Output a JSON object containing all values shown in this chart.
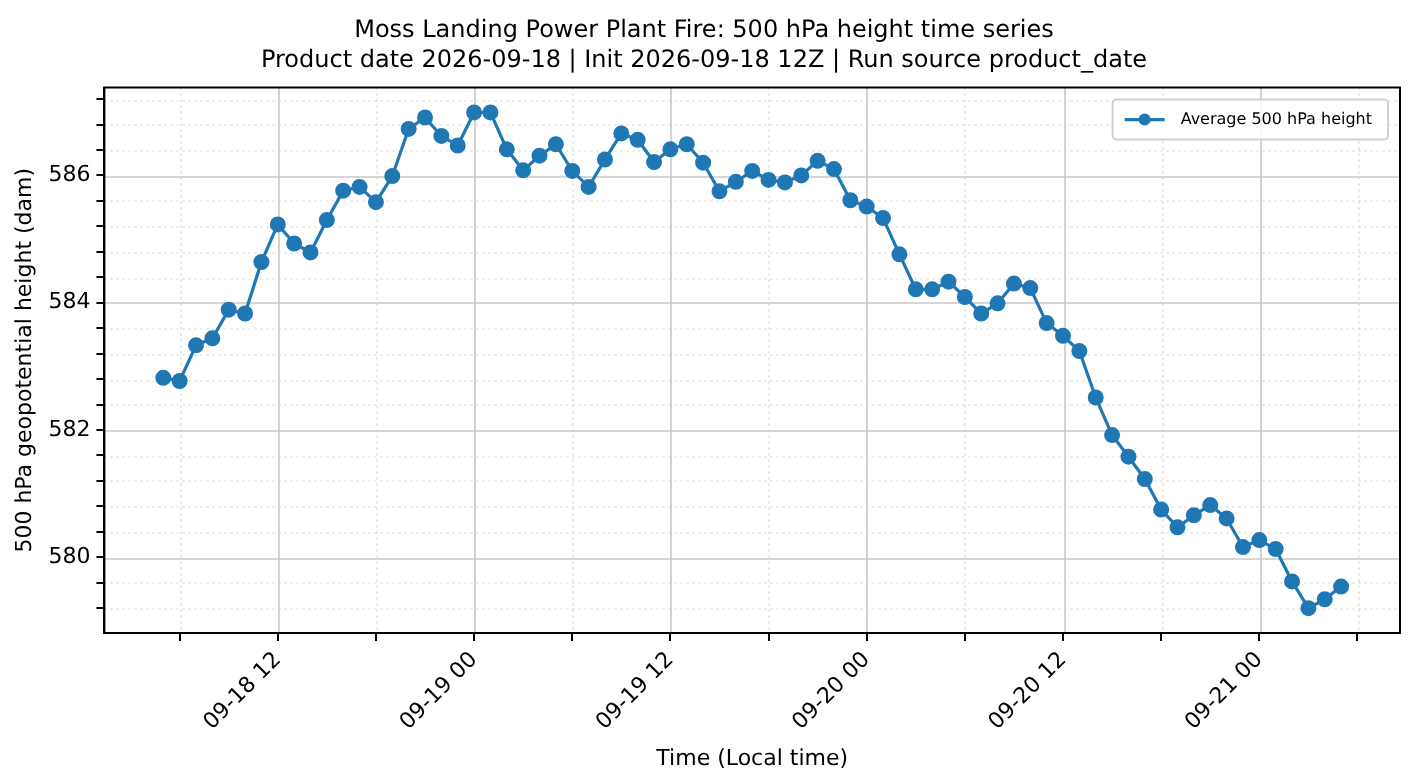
{
  "chart_data": {
    "type": "line",
    "title": "Moss Landing Power Plant Fire: 500 hPa height time series",
    "subtitle": "Product date 2026-09-18 | Init 2026-09-18 12Z | Run source product_date",
    "xlabel": "Time (Local time)",
    "ylabel": "500 hPa geopotential height (dam)",
    "x": [
      "2026-09-18T05:00",
      "2026-09-18T06:00",
      "2026-09-18T07:00",
      "2026-09-18T08:00",
      "2026-09-18T09:00",
      "2026-09-18T10:00",
      "2026-09-18T11:00",
      "2026-09-18T12:00",
      "2026-09-18T13:00",
      "2026-09-18T14:00",
      "2026-09-18T15:00",
      "2026-09-18T16:00",
      "2026-09-18T17:00",
      "2026-09-18T18:00",
      "2026-09-18T19:00",
      "2026-09-18T20:00",
      "2026-09-18T21:00",
      "2026-09-18T22:00",
      "2026-09-18T23:00",
      "2026-09-19T00:00",
      "2026-09-19T01:00",
      "2026-09-19T02:00",
      "2026-09-19T03:00",
      "2026-09-19T04:00",
      "2026-09-19T05:00",
      "2026-09-19T06:00",
      "2026-09-19T07:00",
      "2026-09-19T08:00",
      "2026-09-19T09:00",
      "2026-09-19T10:00",
      "2026-09-19T11:00",
      "2026-09-19T12:00",
      "2026-09-19T13:00",
      "2026-09-19T14:00",
      "2026-09-19T15:00",
      "2026-09-19T16:00",
      "2026-09-19T17:00",
      "2026-09-19T18:00",
      "2026-09-19T19:00",
      "2026-09-19T20:00",
      "2026-09-19T21:00",
      "2026-09-19T22:00",
      "2026-09-19T23:00",
      "2026-09-20T00:00",
      "2026-09-20T01:00",
      "2026-09-20T02:00",
      "2026-09-20T03:00",
      "2026-09-20T04:00",
      "2026-09-20T05:00",
      "2026-09-20T06:00",
      "2026-09-20T07:00",
      "2026-09-20T08:00",
      "2026-09-20T09:00",
      "2026-09-20T10:00",
      "2026-09-20T11:00",
      "2026-09-20T12:00",
      "2026-09-20T13:00",
      "2026-09-20T14:00",
      "2026-09-20T15:00",
      "2026-09-20T16:00",
      "2026-09-20T17:00",
      "2026-09-20T18:00",
      "2026-09-20T19:00",
      "2026-09-20T20:00",
      "2026-09-20T21:00",
      "2026-09-20T22:00",
      "2026-09-20T23:00",
      "2026-09-21T00:00",
      "2026-09-21T01:00",
      "2026-09-21T02:00",
      "2026-09-21T03:00",
      "2026-09-21T04:00",
      "2026-09-21T05:00"
    ],
    "series": [
      {
        "name": "Average 500 hPa height",
        "color": "#1f77b4",
        "values": [
          582.82,
          582.77,
          583.33,
          583.44,
          583.89,
          583.83,
          584.64,
          585.23,
          584.93,
          584.79,
          585.3,
          585.76,
          585.82,
          585.58,
          585.99,
          586.73,
          586.91,
          586.62,
          586.47,
          586.99,
          586.99,
          586.41,
          586.08,
          586.31,
          586.49,
          586.07,
          585.82,
          586.25,
          586.66,
          586.56,
          586.21,
          586.41,
          586.49,
          586.2,
          585.75,
          585.9,
          586.07,
          585.93,
          585.89,
          586.0,
          586.23,
          586.1,
          585.61,
          585.51,
          585.33,
          584.76,
          584.21,
          584.21,
          584.33,
          584.09,
          583.83,
          583.99,
          584.3,
          584.23,
          583.68,
          583.48,
          583.24,
          582.51,
          581.92,
          581.58,
          581.23,
          580.75,
          580.47,
          580.66,
          580.82,
          580.61,
          580.16,
          580.27,
          580.13,
          579.62,
          579.2,
          579.34,
          579.54
        ]
      }
    ],
    "xlim": [
      "2026-09-18T01:24",
      "2026-09-21T08:36"
    ],
    "xticks": [
      {
        "value": "2026-09-18T06:00",
        "label": null
      },
      {
        "value": "2026-09-18T12:00",
        "label": "09-18 12"
      },
      {
        "value": "2026-09-18T18:00",
        "label": null
      },
      {
        "value": "2026-09-19T00:00",
        "label": "09-19 00"
      },
      {
        "value": "2026-09-19T06:00",
        "label": null
      },
      {
        "value": "2026-09-19T12:00",
        "label": "09-19 12"
      },
      {
        "value": "2026-09-19T18:00",
        "label": null
      },
      {
        "value": "2026-09-20T00:00",
        "label": "09-20 00"
      },
      {
        "value": "2026-09-20T06:00",
        "label": null
      },
      {
        "value": "2026-09-20T12:00",
        "label": "09-20 12"
      },
      {
        "value": "2026-09-20T18:00",
        "label": null
      },
      {
        "value": "2026-09-21T00:00",
        "label": "09-21 00"
      },
      {
        "value": "2026-09-21T06:00",
        "label": null
      }
    ],
    "ylim": [
      578.81,
      587.38
    ],
    "yticks": [
      {
        "value": 579.2,
        "label": null
      },
      {
        "value": 579.6,
        "label": null
      },
      580,
      {
        "value": 580.4,
        "label": null
      },
      {
        "value": 580.8,
        "label": null
      },
      {
        "value": 581.2,
        "label": null
      },
      {
        "value": 581.6,
        "label": null
      },
      582,
      {
        "value": 582.4,
        "label": null
      },
      {
        "value": 582.8,
        "label": null
      },
      {
        "value": 583.2,
        "label": null
      },
      {
        "value": 583.6,
        "label": null
      },
      584,
      {
        "value": 584.4,
        "label": null
      },
      {
        "value": 584.8,
        "label": null
      },
      {
        "value": 585.2,
        "label": null
      },
      {
        "value": 585.6,
        "label": null
      },
      586,
      {
        "value": 586.4,
        "label": null
      },
      {
        "value": 586.8,
        "label": null
      },
      {
        "value": 587.2,
        "label": null
      }
    ],
    "grid": true,
    "legend": "top right",
    "marker": "circle",
    "line_style": "solid"
  }
}
